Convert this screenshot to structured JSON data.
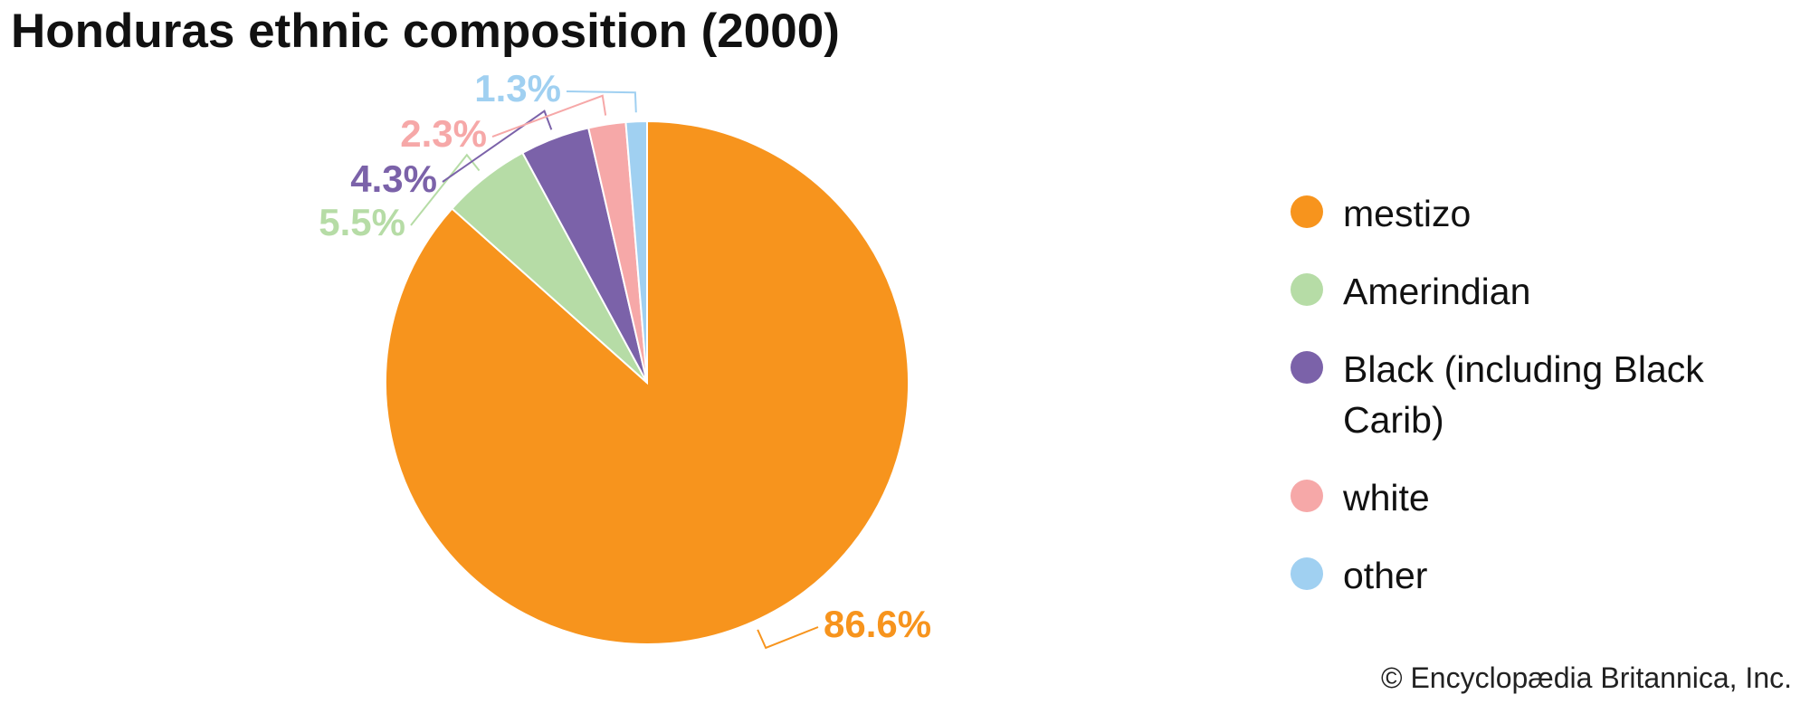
{
  "chart_data": {
    "type": "pie",
    "title": "Honduras ethnic composition (2000)",
    "categories": [
      "mestizo",
      "Amerindian",
      "Black (including Black Carib)",
      "white",
      "other"
    ],
    "values": [
      86.6,
      5.5,
      4.3,
      2.3,
      1.3
    ],
    "value_labels": [
      "86.6%",
      "5.5%",
      "4.3%",
      "2.3%",
      "1.3%"
    ],
    "colors": [
      "#f7941d",
      "#b6dca6",
      "#7b62a9",
      "#f6a8a8",
      "#a0d0f1"
    ],
    "legend": "right",
    "credit": "© Encyclopædia Britannica, Inc."
  }
}
